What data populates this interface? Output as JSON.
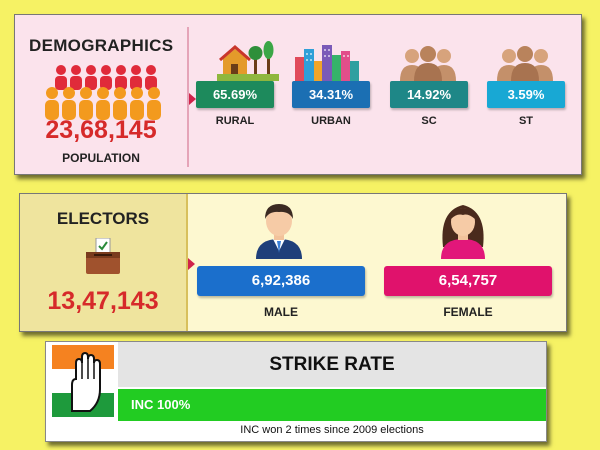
{
  "demographics": {
    "title": "DEMOGRAPHICS",
    "population": "23,68,145",
    "population_label": "POPULATION",
    "stats": [
      {
        "value": "65.69%",
        "label": "RURAL",
        "icon": "rural-icon",
        "color": "#1d8a5c"
      },
      {
        "value": "34.31%",
        "label": "URBAN",
        "icon": "urban-icon",
        "color": "#1b6fb3"
      },
      {
        "value": "14.92%",
        "label": "SC",
        "icon": "people-group-icon",
        "color": "#1e8787"
      },
      {
        "value": "3.59%",
        "label": "ST",
        "icon": "people-group-icon",
        "color": "#18a8d4"
      }
    ]
  },
  "electors": {
    "title": "ELECTORS",
    "total": "13,47,143",
    "male": {
      "value": "6,92,386",
      "label": "MALE",
      "color": "#1b6fcc"
    },
    "female": {
      "value": "6,54,757",
      "label": "FEMALE",
      "color": "#e0126c"
    }
  },
  "strike_rate": {
    "title": "STRIKE RATE",
    "bar_text": "INC 100%",
    "fill_percent": 100,
    "note": "INC won 2 times since 2009 elections",
    "bar_color": "#22cc22"
  },
  "colors": {
    "accent_red": "#d62a2a",
    "demo_bg": "#fbe3ec",
    "electors_bg": "#fdf8d0",
    "page_bg": "#f6f264"
  }
}
